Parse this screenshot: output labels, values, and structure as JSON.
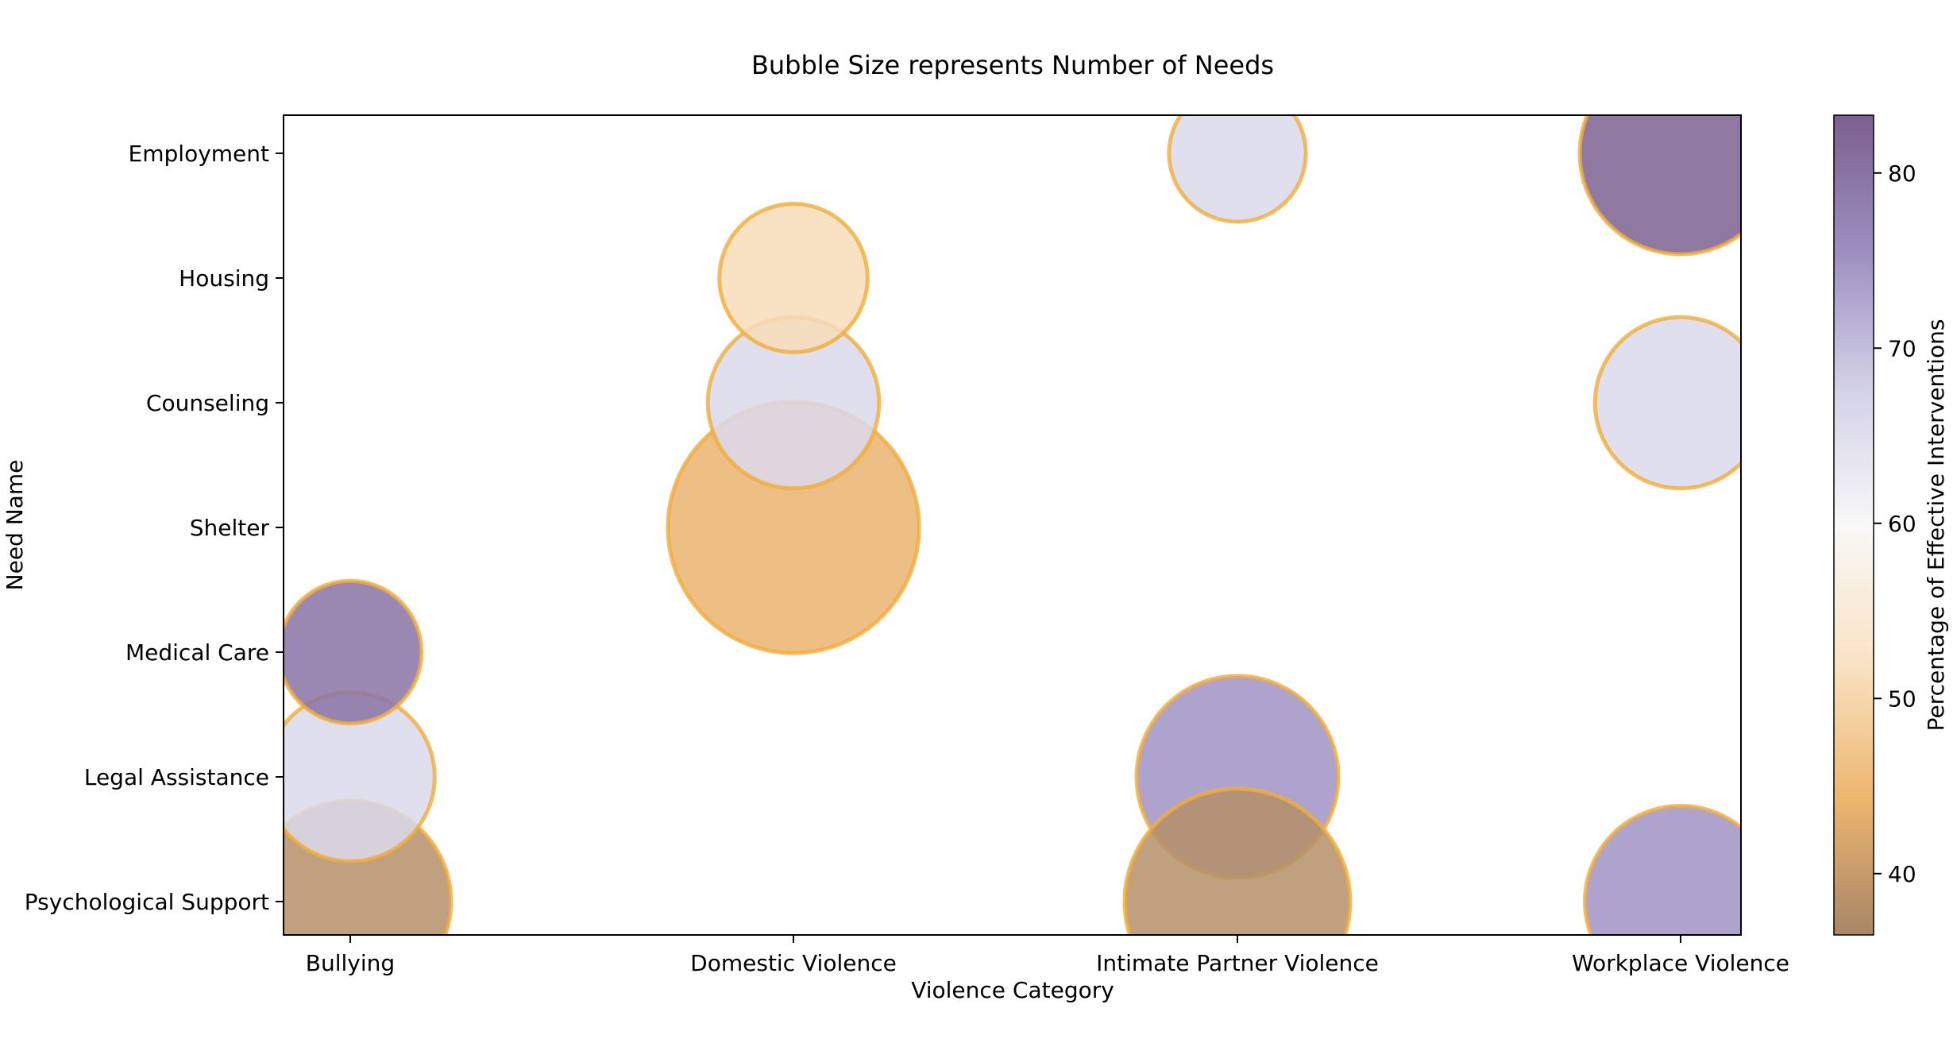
{
  "chart_data": {
    "type": "scatter",
    "title": "Bubble Size represents Number of Needs",
    "xlabel": "Violence Category",
    "ylabel": "Need Name",
    "x_categories": [
      "Bullying",
      "Domestic Violence",
      "Intimate Partner Violence",
      "Workplace Violence"
    ],
    "y_categories": [
      "Psychological Support",
      "Legal Assistance",
      "Medical Care",
      "Shelter",
      "Counseling",
      "Housing",
      "Employment"
    ],
    "colorbar": {
      "label": "Percentage of Effective Interventions",
      "range": [
        36.5,
        83.3
      ],
      "ticks": [
        40,
        50,
        60,
        70,
        80
      ],
      "colormap": [
        "#a88667",
        "#edb66f",
        "#f9e3c5",
        "#f8f8f8",
        "#d3d1e7",
        "#9d8fc1",
        "#7b5f8f"
      ]
    },
    "bubble_edge_color": "#f0ad3c",
    "legend": "none",
    "grid": false,
    "points": [
      {
        "x": "Bullying",
        "y": "Psychological Support",
        "size_relative": 1.0,
        "effective_pct": 38
      },
      {
        "x": "Bullying",
        "y": "Legal Assistance",
        "size_relative": 0.7,
        "effective_pct": 66
      },
      {
        "x": "Bullying",
        "y": "Medical Care",
        "size_relative": 0.5,
        "effective_pct": 80
      },
      {
        "x": "Domestic Violence",
        "y": "Shelter",
        "size_relative": 1.55,
        "effective_pct": 44
      },
      {
        "x": "Domestic Violence",
        "y": "Counseling",
        "size_relative": 0.72,
        "effective_pct": 66
      },
      {
        "x": "Domestic Violence",
        "y": "Housing",
        "size_relative": 0.54,
        "effective_pct": 51
      },
      {
        "x": "Intimate Partner Violence",
        "y": "Employment",
        "size_relative": 0.46,
        "effective_pct": 66
      },
      {
        "x": "Intimate Partner Violence",
        "y": "Legal Assistance",
        "size_relative": 1.0,
        "effective_pct": 75
      },
      {
        "x": "Intimate Partner Violence",
        "y": "Psychological Support",
        "size_relative": 1.25,
        "effective_pct": 38
      },
      {
        "x": "Workplace Violence",
        "y": "Employment",
        "size_relative": 1.0,
        "effective_pct": 83
      },
      {
        "x": "Workplace Violence",
        "y": "Counseling",
        "size_relative": 0.72,
        "effective_pct": 66
      },
      {
        "x": "Workplace Violence",
        "y": "Psychological Support",
        "size_relative": 0.9,
        "effective_pct": 75
      }
    ]
  }
}
